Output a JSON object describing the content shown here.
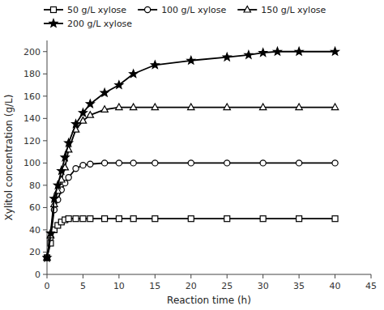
{
  "chart_data": {
    "type": "line",
    "xlabel": "Reaction time (h)",
    "ylabel": "Xylitol concentration (g/L)",
    "xlim": [
      0,
      45
    ],
    "ylim": [
      0,
      210
    ],
    "xticks": [
      0,
      5,
      10,
      15,
      20,
      25,
      30,
      35,
      40,
      45
    ],
    "yticks": [
      0,
      20,
      40,
      60,
      80,
      100,
      120,
      140,
      160,
      180,
      200
    ],
    "grid": false,
    "legend": "upper left",
    "color": "black",
    "series": [
      {
        "name": "50 g/L xylose",
        "color": "black",
        "marker": "square",
        "x": [
          0.0,
          0.5,
          1.0,
          1.5,
          2.0,
          2.5,
          3.0,
          4.0,
          5.0,
          6.0,
          8.0,
          10.0,
          12.0,
          15.0,
          20.0,
          25.0,
          30.0,
          35.0,
          40.0
        ],
        "values": [
          15,
          28,
          40,
          44,
          47,
          49,
          50,
          50,
          50,
          50,
          50,
          50,
          50,
          50,
          50,
          50,
          50,
          50,
          50
        ]
      },
      {
        "name": "100 g/L xylose",
        "color": "black",
        "marker": "circle",
        "x": [
          0.0,
          0.5,
          1.0,
          1.5,
          2.0,
          2.5,
          3.0,
          4.0,
          5.0,
          6.0,
          8.0,
          10.0,
          12.0,
          15.0,
          20.0,
          25.0,
          30.0,
          35.0,
          40.0
        ],
        "values": [
          15,
          33,
          58,
          67,
          76,
          82,
          87,
          95,
          98,
          99,
          100,
          100,
          100,
          100,
          100,
          100,
          100,
          100,
          100
        ]
      },
      {
        "name": "150 g/L xylose",
        "color": "black",
        "marker": "triangle",
        "x": [
          0.0,
          0.5,
          1.0,
          1.5,
          2.0,
          2.5,
          3.0,
          4.0,
          5.0,
          6.0,
          8.0,
          10.0,
          12.0,
          15.0,
          20.0,
          25.0,
          30.0,
          35.0,
          40.0
        ],
        "values": [
          15,
          35,
          63,
          75,
          85,
          96,
          112,
          130,
          138,
          143,
          148,
          150,
          150,
          150,
          150,
          150,
          150,
          150,
          150
        ]
      },
      {
        "name": "200 g/L xylose",
        "color": "black",
        "marker": "star",
        "x": [
          0.0,
          0.5,
          1.0,
          1.5,
          2.0,
          2.5,
          3.0,
          4.0,
          5.0,
          6.0,
          8.0,
          10.0,
          12.0,
          15.0,
          20.0,
          25.0,
          28.0,
          30.0,
          32.0,
          35.0,
          40.0
        ],
        "values": [
          15,
          37,
          68,
          80,
          93,
          105,
          118,
          135,
          145,
          153,
          163,
          170,
          180,
          188,
          192,
          195,
          197,
          199,
          200,
          200,
          200
        ]
      }
    ]
  }
}
